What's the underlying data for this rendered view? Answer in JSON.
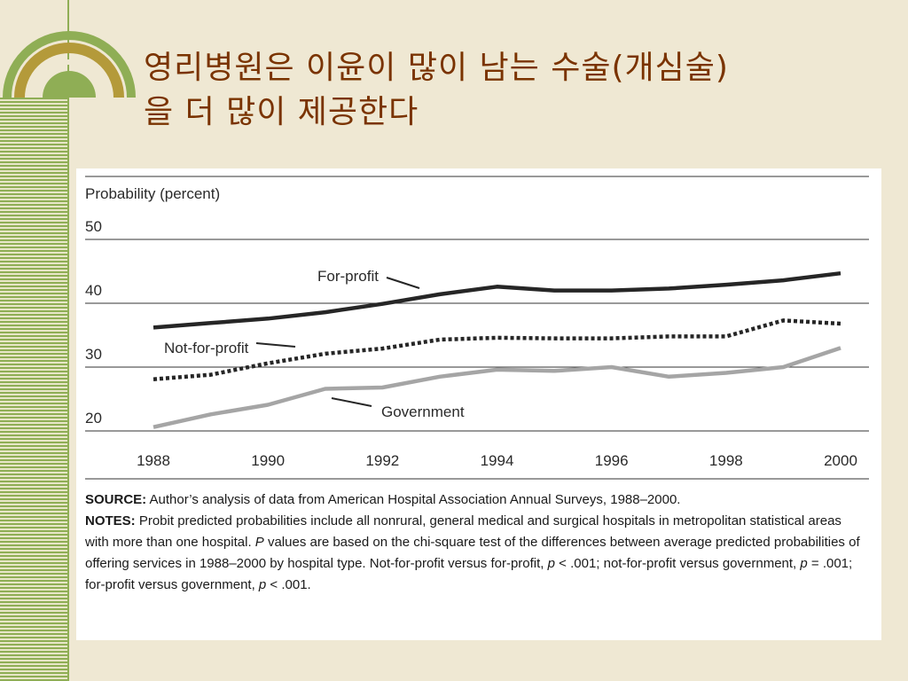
{
  "slide": {
    "title_line1": "영리병원은 이윤이 많이 남는 수술(개심술)",
    "title_line2": "을 더 많이 제공한다",
    "colors": {
      "background": "#efe8d3",
      "accent_green": "#8fae55",
      "accent_gold": "#b49a3a",
      "title": "#7a3300"
    }
  },
  "chart_data": {
    "type": "line",
    "ylabel": "Probability (percent)",
    "y_ticks": [
      "50",
      "40",
      "30",
      "20"
    ],
    "x_ticks": [
      "1988",
      "1990",
      "1992",
      "1994",
      "1996",
      "1998",
      "2000"
    ],
    "ylim": [
      20,
      50
    ],
    "xlim": [
      1988,
      2000
    ],
    "grid": "horizontal",
    "series": [
      {
        "name": "For-profit",
        "style": "solid-dark",
        "x": [
          1988,
          1989,
          1990,
          1991,
          1992,
          1993,
          1994,
          1995,
          1996,
          1997,
          1998,
          1999,
          2000
        ],
        "values": [
          36.2,
          36.9,
          37.6,
          38.6,
          39.9,
          41.4,
          42.6,
          42.0,
          42.0,
          42.3,
          42.9,
          43.6,
          44.7
        ]
      },
      {
        "name": "Not-for-profit",
        "style": "dotted-dark",
        "x": [
          1988,
          1989,
          1990,
          1991,
          1992,
          1993,
          1994,
          1995,
          1996,
          1997,
          1998,
          1999,
          2000
        ],
        "values": [
          28.1,
          28.8,
          30.6,
          32.1,
          32.9,
          34.3,
          34.6,
          34.5,
          34.5,
          34.8,
          34.8,
          37.3,
          36.8
        ]
      },
      {
        "name": "Government",
        "style": "solid-gray",
        "x": [
          1988,
          1989,
          1990,
          1991,
          1992,
          1993,
          1994,
          1995,
          1996,
          1997,
          1998,
          1999,
          2000
        ],
        "values": [
          20.6,
          22.6,
          24.1,
          26.6,
          26.8,
          28.5,
          29.6,
          29.4,
          30.0,
          28.5,
          29.1,
          30.0,
          33.0
        ]
      }
    ]
  },
  "notes": {
    "source_label": "SOURCE:",
    "source_text": " Author’s analysis of data from American Hospital Association Annual Surveys, 1988–2000.",
    "notes_label": "NOTES:",
    "notes_text_1": " Probit predicted probabilities include all nonrural, general medical and surgical hospitals in metropolitan statistical areas with more than one hospital. ",
    "notes_p_italic": "P",
    "notes_text_2": " values are based on the chi-square test of the differences between average predicted probabilities of offering services in 1988–2000 by hospital type. Not-for-profit versus for-profit, ",
    "p1": "p",
    "t3": " < .001; not-for-profit versus government, ",
    "p2": "p",
    "t4": " = .001; for-profit versus government, ",
    "p3": "p",
    "t5": " < .001."
  }
}
